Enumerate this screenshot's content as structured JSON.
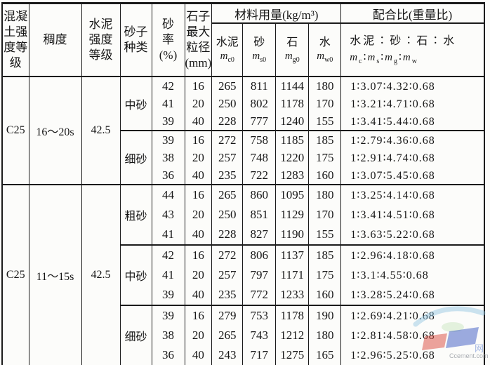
{
  "table": {
    "header": {
      "col_grade": "混凝\n土强\n度等\n级",
      "col_consistency": "稠度",
      "col_cement_grade": "水泥\n强度\n等级",
      "col_sand_type": "砂子\n种类",
      "col_sand_ratio": "砂\n率\n(%)",
      "col_max_size": "石子\n最大\n粒径\n(mm)",
      "materials_title": "材料用量(kg/m³)",
      "materials": [
        {
          "label": "水泥",
          "sym_base": "m",
          "sym_sub": "c0"
        },
        {
          "label": "砂",
          "sym_base": "m",
          "sym_sub": "s0"
        },
        {
          "label": "石",
          "sym_base": "m",
          "sym_sub": "g0"
        },
        {
          "label": "水",
          "sym_base": "m",
          "sym_sub": "w0"
        }
      ],
      "ratio_title": "配合比(重量比)",
      "ratio_line1": "水泥∶砂∶石∶水",
      "ratio_separator": "∶",
      "ratio_symbols": [
        {
          "base": "m",
          "sub": "c"
        },
        {
          "base": "m",
          "sub": "s"
        },
        {
          "base": "m",
          "sub": "g"
        },
        {
          "base": "m",
          "sub": "w"
        }
      ]
    },
    "sections": [
      {
        "grade": "C25",
        "consistency": "16～20s",
        "cement_grade": "42.5",
        "groups": [
          {
            "sand_type": "中砂",
            "rows": [
              {
                "sand_ratio": "42",
                "max_size": "16",
                "cement": "265",
                "sand": "811",
                "stone": "1144",
                "water": "180",
                "ratio": "1∶3.07∶4.32∶0.68"
              },
              {
                "sand_ratio": "41",
                "max_size": "20",
                "cement": "250",
                "sand": "802",
                "stone": "1178",
                "water": "170",
                "ratio": "1∶3.21∶4.71∶0.68"
              },
              {
                "sand_ratio": "39",
                "max_size": "40",
                "cement": "228",
                "sand": "777",
                "stone": "1240",
                "water": "155",
                "ratio": "1∶3.41∶5.44∶0.68"
              }
            ]
          },
          {
            "sand_type": "细砂",
            "rows": [
              {
                "sand_ratio": "39",
                "max_size": "16",
                "cement": "272",
                "sand": "758",
                "stone": "1185",
                "water": "185",
                "ratio": "1∶2.79∶4.36∶0.68"
              },
              {
                "sand_ratio": "38",
                "max_size": "20",
                "cement": "257",
                "sand": "748",
                "stone": "1220",
                "water": "175",
                "ratio": "1∶2.91∶4.74∶0.68"
              },
              {
                "sand_ratio": "36",
                "max_size": "40",
                "cement": "235",
                "sand": "722",
                "stone": "1283",
                "water": "160",
                "ratio": "1∶3.07∶5.45∶0.68"
              }
            ]
          }
        ]
      },
      {
        "grade": "C25",
        "consistency": "11～15s",
        "cement_grade": "42.5",
        "groups": [
          {
            "sand_type": "粗砂",
            "rows": [
              {
                "sand_ratio": "44",
                "max_size": "16",
                "cement": "265",
                "sand": "860",
                "stone": "1095",
                "water": "180",
                "ratio": "1∶3.25∶4.14∶0.68"
              },
              {
                "sand_ratio": "43",
                "max_size": "20",
                "cement": "250",
                "sand": "851",
                "stone": "1129",
                "water": "170",
                "ratio": "1∶3.41∶4.51∶0.68"
              },
              {
                "sand_ratio": "41",
                "max_size": "40",
                "cement": "228",
                "sand": "827",
                "stone": "1190",
                "water": "155",
                "ratio": "1∶3.63∶5.22∶0.68"
              }
            ]
          },
          {
            "sand_type": "中砂",
            "rows": [
              {
                "sand_ratio": "42",
                "max_size": "16",
                "cement": "272",
                "sand": "806",
                "stone": "1137",
                "water": "185",
                "ratio": "1∶2.96∶4.18∶0.68"
              },
              {
                "sand_ratio": "41",
                "max_size": "20",
                "cement": "257",
                "sand": "797",
                "stone": "1171",
                "water": "175",
                "ratio": "1∶3.1∶4.55∶0.68"
              },
              {
                "sand_ratio": "39",
                "max_size": "40",
                "cement": "235",
                "sand": "772",
                "stone": "1233",
                "water": "160",
                "ratio": "1∶3.28∶5.24∶0.68"
              }
            ]
          },
          {
            "sand_type": "细砂",
            "rows": [
              {
                "sand_ratio": "39",
                "max_size": "16",
                "cement": "279",
                "sand": "753",
                "stone": "1178",
                "water": "190",
                "ratio": "1∶2.69∶4.21∶0.68"
              },
              {
                "sand_ratio": "38",
                "max_size": "20",
                "cement": "265",
                "sand": "743",
                "stone": "1212",
                "water": "180",
                "ratio": "1∶2.81∶4.58∶0.68"
              },
              {
                "sand_ratio": "36",
                "max_size": "40",
                "cement": "243",
                "sand": "717",
                "stone": "1275",
                "water": "165",
                "ratio": "1∶2.96∶5.25∶0.68"
              }
            ]
          }
        ]
      }
    ]
  },
  "watermark": {
    "text": "Ccement.com",
    "char": "网",
    "colors": {
      "swoosh_blue": "#8fc3e0",
      "logo_red": "#d9473c",
      "logo_blue": "#3a57c2",
      "green_tint": "#cde8c4",
      "text_gray": "#a9adb2"
    }
  }
}
